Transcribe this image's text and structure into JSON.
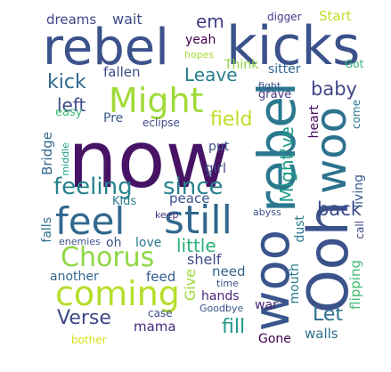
{
  "words": {
    "now": {
      "text": "now",
      "color": "#471365"
    },
    "rebel_h": {
      "text": "rebel",
      "color": "#3b528b"
    },
    "kicks": {
      "text": "kicks",
      "color": "#3b528b"
    },
    "rebel_v": {
      "text": "rebel",
      "color": "#2a788e"
    },
    "woo_v1": {
      "text": "woo",
      "color": "#39558c"
    },
    "woo_v2": {
      "text": "woo",
      "color": "#2c728e"
    },
    "ooh": {
      "text": "Ooh",
      "color": "#3b528b"
    },
    "feel": {
      "text": "feel",
      "color": "#31688e"
    },
    "still": {
      "text": "still",
      "color": "#31688e"
    },
    "coming": {
      "text": "coming",
      "color": "#b5de2b"
    },
    "might": {
      "text": "Might",
      "color": "#a0da39"
    },
    "chorus": {
      "text": "Chorus",
      "color": "#8fd744"
    },
    "feeling": {
      "text": "feeling",
      "color": "#26828e"
    },
    "since": {
      "text": "since",
      "color": "#26828e"
    },
    "kick": {
      "text": "kick",
      "color": "#31688e"
    },
    "leave": {
      "text": "Leave",
      "color": "#277f8e"
    },
    "left": {
      "text": "left",
      "color": "#3e4a89"
    },
    "field": {
      "text": "field",
      "color": "#bddf26"
    },
    "baby": {
      "text": "baby",
      "color": "#404688"
    },
    "back": {
      "text": "back",
      "color": "#3e4a89"
    },
    "mightve": {
      "text": "Might've",
      "color": "#1f9a8a"
    },
    "verse": {
      "text": "Verse",
      "color": "#3f4889"
    },
    "let": {
      "text": "Let",
      "color": "#2d708e"
    },
    "little": {
      "text": "little",
      "color": "#2db27d"
    },
    "fill": {
      "text": "fill",
      "color": "#1f988b"
    },
    "em": {
      "text": "em",
      "color": "#433e85"
    },
    "dreams": {
      "text": "dreams",
      "color": "#414487"
    },
    "wait": {
      "text": "wait",
      "color": "#3e4c8a"
    },
    "start": {
      "text": "Start",
      "color": "#bddf26"
    },
    "digger": {
      "text": "digger",
      "color": "#443b84"
    },
    "yeah": {
      "text": "yeah",
      "color": "#440154"
    },
    "hopes": {
      "text": "hopes",
      "color": "#a8db34"
    },
    "fallen": {
      "text": "fallen",
      "color": "#3e4a89"
    },
    "think": {
      "text": "Think",
      "color": "#8fd744"
    },
    "sitter": {
      "text": "sitter",
      "color": "#32658e"
    },
    "got": {
      "text": "Got",
      "color": "#35b779"
    },
    "fight": {
      "text": "fight",
      "color": "#3b528b"
    },
    "grave": {
      "text": "grave",
      "color": "#453781"
    },
    "easy": {
      "text": "easy",
      "color": "#3aba76"
    },
    "pre": {
      "text": "Pre",
      "color": "#375a8c"
    },
    "eclipse": {
      "text": "eclipse",
      "color": "#3e4989"
    },
    "heart": {
      "text": "heart",
      "color": "#46085c"
    },
    "come": {
      "text": "come",
      "color": "#2a788e"
    },
    "bridge": {
      "text": "Bridge",
      "color": "#31688e"
    },
    "middle": {
      "text": "middle",
      "color": "#1fa188"
    },
    "put": {
      "text": "put",
      "color": "#3b528b"
    },
    "girl": {
      "text": "girl",
      "color": "#3e4a89"
    },
    "living": {
      "text": "living",
      "color": "#38588c"
    },
    "kids": {
      "text": "Kids",
      "color": "#2a788e"
    },
    "peace": {
      "text": "peace",
      "color": "#3b528b"
    },
    "abyss": {
      "text": "abyss",
      "color": "#3b528b"
    },
    "dust": {
      "text": "dust",
      "color": "#2a788e"
    },
    "keep": {
      "text": "keep",
      "color": "#46327e"
    },
    "call": {
      "text": "call",
      "color": "#404688"
    },
    "falls": {
      "text": "falls",
      "color": "#2e6d8e"
    },
    "enemies": {
      "text": "enemies",
      "color": "#3b528b"
    },
    "oh": {
      "text": "oh",
      "color": "#3b528b"
    },
    "love": {
      "text": "love",
      "color": "#2a788e"
    },
    "shelf": {
      "text": "shelf",
      "color": "#3e4a89"
    },
    "give": {
      "text": "Give",
      "color": "#a0da39"
    },
    "another": {
      "text": "another",
      "color": "#32658e"
    },
    "feed": {
      "text": "feed",
      "color": "#365c8d"
    },
    "need": {
      "text": "need",
      "color": "#32648e"
    },
    "time": {
      "text": "time",
      "color": "#3b528b"
    },
    "mouth": {
      "text": "mouth",
      "color": "#287d8e"
    },
    "flipping": {
      "text": "flipping",
      "color": "#42be71"
    },
    "hands": {
      "text": "hands",
      "color": "#482878"
    },
    "goodbye": {
      "text": "Goodbye",
      "color": "#3b528b"
    },
    "war": {
      "text": "war",
      "color": "#481f70"
    },
    "case": {
      "text": "case",
      "color": "#3b528b"
    },
    "mama": {
      "text": "mama",
      "color": "#472d7b"
    },
    "walls": {
      "text": "walls",
      "color": "#2e6e8e"
    },
    "gone": {
      "text": "Gone",
      "color": "#440154"
    },
    "bother": {
      "text": "bother",
      "color": "#d8e219"
    }
  }
}
